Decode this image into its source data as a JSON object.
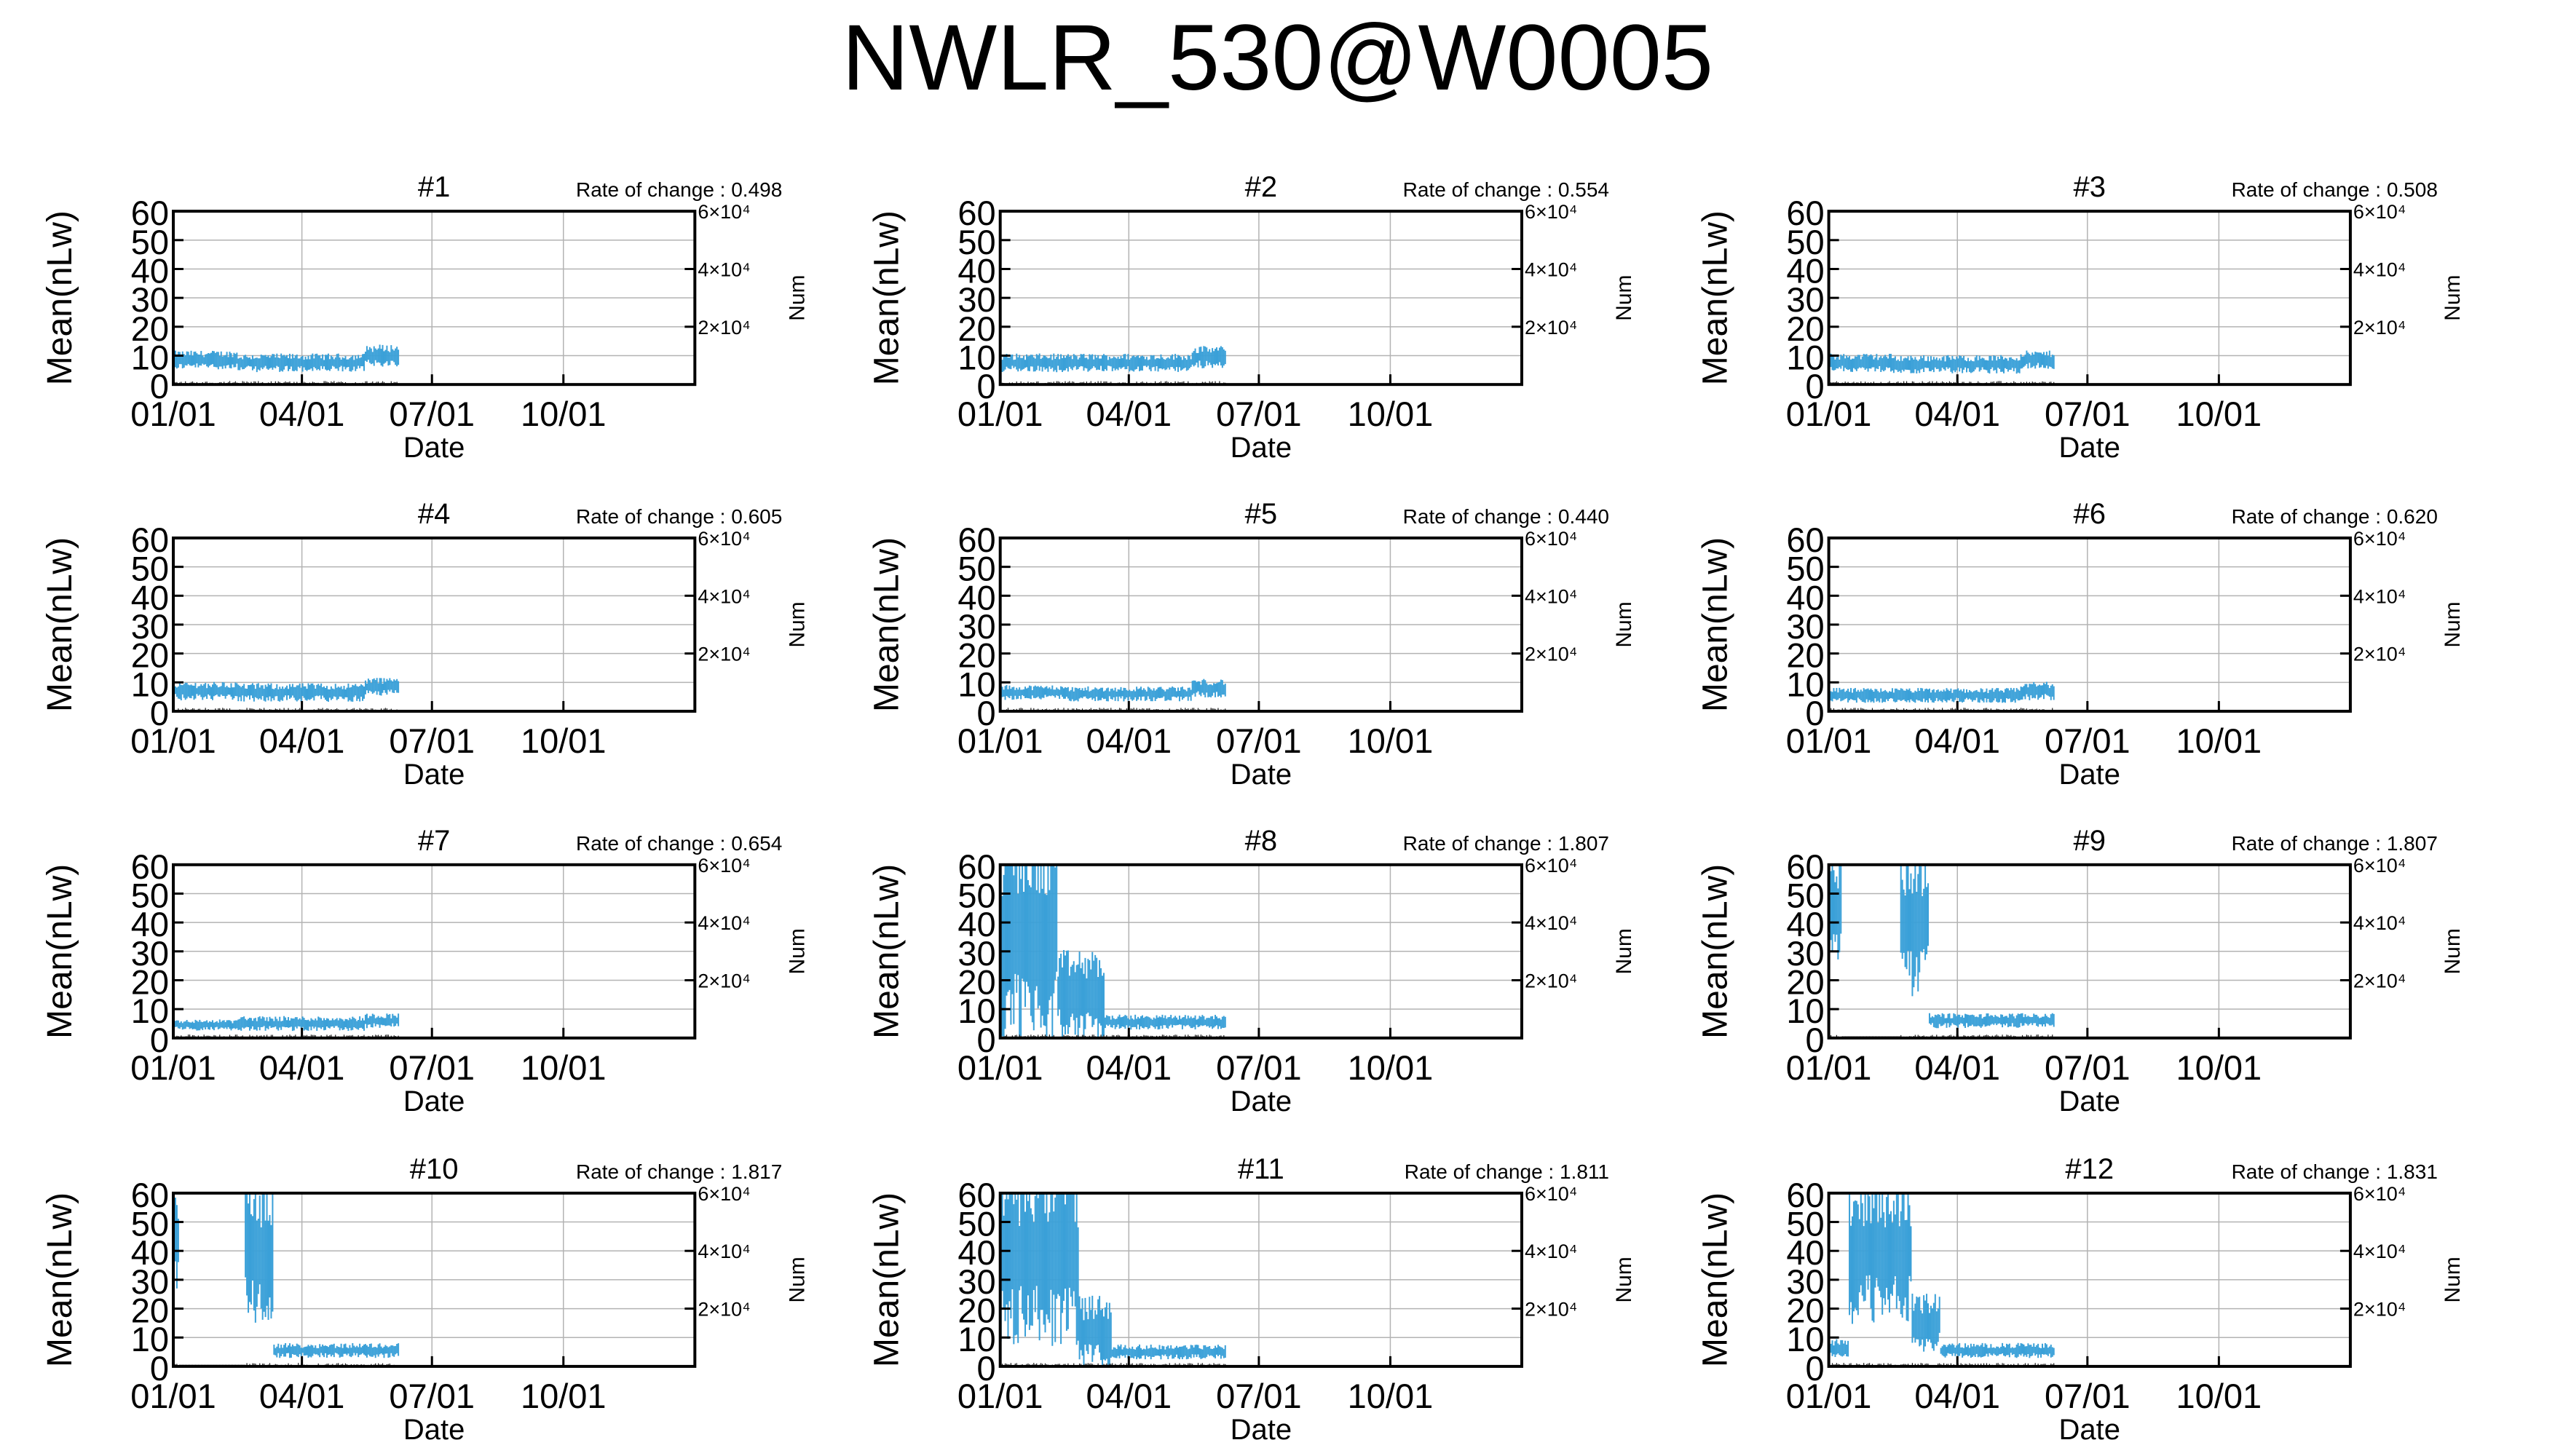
{
  "title": "NWLR_530@W0005",
  "colors": {
    "series": "#3aa0d8",
    "grid": "#b3b3b3",
    "axis": "#000000",
    "background": "#ffffff"
  },
  "chart_data": [
    {
      "type": "line",
      "panel": "#1",
      "rate_label": "Rate of change : 0.498",
      "xlabel": "Date",
      "ylabel": "Mean(nLw)",
      "y2label": "Num",
      "x_tick_labels": [
        "01/01",
        "04/01",
        "07/01",
        "10/01"
      ],
      "y_ticks": [
        0,
        10,
        20,
        30,
        40,
        50,
        60
      ],
      "y2_ticks": [
        "2×10⁴",
        "4×10⁴",
        "6×10⁴"
      ],
      "ylim": [
        0,
        60
      ],
      "y2lim": [
        0,
        60000
      ],
      "grid": true,
      "data_end_date": "06/08",
      "series": [
        {
          "segments": [
            {
              "from": "01/01",
              "to": "02/15",
              "mean": 8.5,
              "amp": 2.5
            },
            {
              "from": "02/15",
              "to": "05/15",
              "mean": 7.5,
              "amp": 2.5
            },
            {
              "from": "05/15",
              "to": "06/08",
              "mean": 10,
              "amp": 3
            }
          ]
        }
      ]
    },
    {
      "type": "line",
      "panel": "#2",
      "rate_label": "Rate of change : 0.554",
      "xlabel": "Date",
      "ylabel": "Mean(nLw)",
      "y2label": "Num",
      "x_tick_labels": [
        "01/01",
        "04/01",
        "07/01",
        "10/01"
      ],
      "y_ticks": [
        0,
        10,
        20,
        30,
        40,
        50,
        60
      ],
      "y2_ticks": [
        "2×10⁴",
        "4×10⁴",
        "6×10⁴"
      ],
      "ylim": [
        0,
        60
      ],
      "y2lim": [
        0,
        60000
      ],
      "grid": true,
      "data_end_date": "06/08",
      "series": [
        {
          "segments": [
            {
              "from": "01/01",
              "to": "02/15",
              "mean": 7.5,
              "amp": 2.5
            },
            {
              "from": "02/15",
              "to": "05/15",
              "mean": 7.5,
              "amp": 2.5
            },
            {
              "from": "05/15",
              "to": "06/08",
              "mean": 9.5,
              "amp": 3
            }
          ]
        }
      ]
    },
    {
      "type": "line",
      "panel": "#3",
      "rate_label": "Rate of change : 0.508",
      "xlabel": "Date",
      "ylabel": "Mean(nLw)",
      "y2label": "Num",
      "x_tick_labels": [
        "01/01",
        "04/01",
        "07/01",
        "10/01"
      ],
      "y_ticks": [
        0,
        10,
        20,
        30,
        40,
        50,
        60
      ],
      "y2_ticks": [
        "2×10⁴",
        "4×10⁴",
        "6×10⁴"
      ],
      "ylim": [
        0,
        60
      ],
      "y2lim": [
        0,
        60000
      ],
      "grid": true,
      "data_end_date": "06/08",
      "series": [
        {
          "segments": [
            {
              "from": "01/01",
              "to": "02/15",
              "mean": 7.5,
              "amp": 2.5
            },
            {
              "from": "02/15",
              "to": "05/15",
              "mean": 7,
              "amp": 2.5
            },
            {
              "from": "05/15",
              "to": "06/08",
              "mean": 8.5,
              "amp": 2.5
            }
          ]
        }
      ]
    },
    {
      "type": "line",
      "panel": "#4",
      "rate_label": "Rate of change : 0.605",
      "xlabel": "Date",
      "ylabel": "Mean(nLw)",
      "y2label": "Num",
      "x_tick_labels": [
        "01/01",
        "04/01",
        "07/01",
        "10/01"
      ],
      "y_ticks": [
        0,
        10,
        20,
        30,
        40,
        50,
        60
      ],
      "y2_ticks": [
        "2×10⁴",
        "4×10⁴",
        "6×10⁴"
      ],
      "ylim": [
        0,
        60
      ],
      "y2lim": [
        0,
        60000
      ],
      "grid": true,
      "data_end_date": "06/08",
      "series": [
        {
          "segments": [
            {
              "from": "01/01",
              "to": "02/15",
              "mean": 7,
              "amp": 2.5
            },
            {
              "from": "02/15",
              "to": "05/15",
              "mean": 6.5,
              "amp": 2.5
            },
            {
              "from": "05/15",
              "to": "06/08",
              "mean": 8.5,
              "amp": 2.5
            }
          ]
        }
      ]
    },
    {
      "type": "line",
      "panel": "#5",
      "rate_label": "Rate of change : 0.440",
      "xlabel": "Date",
      "ylabel": "Mean(nLw)",
      "y2label": "Num",
      "x_tick_labels": [
        "01/01",
        "04/01",
        "07/01",
        "10/01"
      ],
      "y_ticks": [
        0,
        10,
        20,
        30,
        40,
        50,
        60
      ],
      "y2_ticks": [
        "2×10⁴",
        "4×10⁴",
        "6×10⁴"
      ],
      "ylim": [
        0,
        60
      ],
      "y2lim": [
        0,
        60000
      ],
      "grid": true,
      "data_end_date": "06/08",
      "series": [
        {
          "segments": [
            {
              "from": "01/01",
              "to": "02/15",
              "mean": 6.5,
              "amp": 2
            },
            {
              "from": "02/15",
              "to": "05/15",
              "mean": 6,
              "amp": 2
            },
            {
              "from": "05/15",
              "to": "06/08",
              "mean": 8,
              "amp": 2.5
            }
          ]
        }
      ]
    },
    {
      "type": "line",
      "panel": "#6",
      "rate_label": "Rate of change : 0.620",
      "xlabel": "Date",
      "ylabel": "Mean(nLw)",
      "y2label": "Num",
      "x_tick_labels": [
        "01/01",
        "04/01",
        "07/01",
        "10/01"
      ],
      "y_ticks": [
        0,
        10,
        20,
        30,
        40,
        50,
        60
      ],
      "y2_ticks": [
        "2×10⁴",
        "4×10⁴",
        "6×10⁴"
      ],
      "ylim": [
        0,
        60
      ],
      "y2lim": [
        0,
        60000
      ],
      "grid": true,
      "data_end_date": "06/08",
      "series": [
        {
          "segments": [
            {
              "from": "01/01",
              "to": "02/15",
              "mean": 5.5,
              "amp": 2
            },
            {
              "from": "02/15",
              "to": "05/15",
              "mean": 5.5,
              "amp": 2
            },
            {
              "from": "05/15",
              "to": "06/08",
              "mean": 7,
              "amp": 2.5
            }
          ]
        }
      ]
    },
    {
      "type": "line",
      "panel": "#7",
      "rate_label": "Rate of change : 0.654",
      "xlabel": "Date",
      "ylabel": "Mean(nLw)",
      "y2label": "Num",
      "x_tick_labels": [
        "01/01",
        "04/01",
        "07/01",
        "10/01"
      ],
      "y_ticks": [
        0,
        10,
        20,
        30,
        40,
        50,
        60
      ],
      "y2_ticks": [
        "2×10⁴",
        "4×10⁴",
        "6×10⁴"
      ],
      "ylim": [
        0,
        60
      ],
      "y2lim": [
        0,
        60000
      ],
      "grid": true,
      "data_end_date": "06/08",
      "series": [
        {
          "segments": [
            {
              "from": "01/01",
              "to": "02/15",
              "mean": 4.5,
              "amp": 1.5
            },
            {
              "from": "02/15",
              "to": "05/15",
              "mean": 5,
              "amp": 2
            },
            {
              "from": "05/15",
              "to": "06/08",
              "mean": 6,
              "amp": 2
            }
          ]
        }
      ]
    },
    {
      "type": "line",
      "panel": "#8",
      "rate_label": "Rate of change : 1.807",
      "xlabel": "Date",
      "ylabel": "Mean(nLw)",
      "y2label": "Num",
      "x_tick_labels": [
        "01/01",
        "04/01",
        "07/01",
        "10/01"
      ],
      "y_ticks": [
        0,
        10,
        20,
        30,
        40,
        50,
        60
      ],
      "y2_ticks": [
        "2×10⁴",
        "4×10⁴",
        "6×10⁴"
      ],
      "ylim": [
        0,
        60
      ],
      "y2lim": [
        0,
        60000
      ],
      "grid": true,
      "data_end_date": "06/08",
      "series": [
        {
          "segments": [
            {
              "from": "01/01",
              "to": "02/10",
              "mean": 35,
              "amp": 30
            },
            {
              "from": "02/10",
              "to": "03/15",
              "mean": 15,
              "amp": 12
            },
            {
              "from": "03/15",
              "to": "06/08",
              "mean": 5.5,
              "amp": 2
            }
          ]
        }
      ]
    },
    {
      "type": "line",
      "panel": "#9",
      "rate_label": "Rate of change : 1.807",
      "xlabel": "Date",
      "ylabel": "Mean(nLw)",
      "y2label": "Num",
      "x_tick_labels": [
        "01/01",
        "04/01",
        "07/01",
        "10/01"
      ],
      "y_ticks": [
        0,
        10,
        20,
        30,
        40,
        50,
        60
      ],
      "y2_ticks": [
        "2×10⁴",
        "4×10⁴",
        "6×10⁴"
      ],
      "ylim": [
        0,
        60
      ],
      "y2lim": [
        0,
        60000
      ],
      "grid": true,
      "data_end_date": "06/08",
      "series": [
        {
          "segments": [
            {
              "from": "01/01",
              "to": "01/10",
              "mean": 45,
              "amp": 15
            },
            {
              "from": "01/10",
              "to": "02/20",
              "mean": 0,
              "amp": 0
            },
            {
              "from": "02/20",
              "to": "03/12",
              "mean": 40,
              "amp": 20
            },
            {
              "from": "03/12",
              "to": "06/08",
              "mean": 6,
              "amp": 2
            }
          ]
        }
      ]
    },
    {
      "type": "line",
      "panel": "#10",
      "rate_label": "Rate of change : 1.817",
      "xlabel": "Date",
      "ylabel": "Mean(nLw)",
      "y2label": "Num",
      "x_tick_labels": [
        "01/01",
        "04/01",
        "07/01",
        "10/01"
      ],
      "y_ticks": [
        0,
        10,
        20,
        30,
        40,
        50,
        60
      ],
      "y2_ticks": [
        "2×10⁴",
        "4×10⁴",
        "6×10⁴"
      ],
      "ylim": [
        0,
        60
      ],
      "y2lim": [
        0,
        60000
      ],
      "grid": true,
      "data_end_date": "06/08",
      "series": [
        {
          "segments": [
            {
              "from": "01/01",
              "to": "01/05",
              "mean": 45,
              "amp": 15
            },
            {
              "from": "01/05",
              "to": "02/20",
              "mean": 0,
              "amp": 0
            },
            {
              "from": "02/20",
              "to": "03/12",
              "mean": 40,
              "amp": 20
            },
            {
              "from": "03/12",
              "to": "06/08",
              "mean": 5.5,
              "amp": 2
            }
          ]
        }
      ]
    },
    {
      "type": "line",
      "panel": "#11",
      "rate_label": "Rate of change : 1.811",
      "xlabel": "Date",
      "ylabel": "Mean(nLw)",
      "y2label": "Num",
      "x_tick_labels": [
        "01/01",
        "04/01",
        "07/01",
        "10/01"
      ],
      "y_ticks": [
        0,
        10,
        20,
        30,
        40,
        50,
        60
      ],
      "y2_ticks": [
        "2×10⁴",
        "4×10⁴",
        "6×10⁴"
      ],
      "ylim": [
        0,
        60
      ],
      "y2lim": [
        0,
        60000
      ],
      "grid": true,
      "data_end_date": "06/08",
      "series": [
        {
          "segments": [
            {
              "from": "01/01",
              "to": "02/25",
              "mean": 38,
              "amp": 25
            },
            {
              "from": "02/25",
              "to": "03/20",
              "mean": 12,
              "amp": 10
            },
            {
              "from": "03/20",
              "to": "06/08",
              "mean": 5,
              "amp": 2
            }
          ]
        }
      ]
    },
    {
      "type": "line",
      "panel": "#12",
      "rate_label": "Rate of change : 1.831",
      "xlabel": "Date",
      "ylabel": "Mean(nLw)",
      "y2label": "Num",
      "x_tick_labels": [
        "01/01",
        "04/01",
        "07/01",
        "10/01"
      ],
      "y_ticks": [
        0,
        10,
        20,
        30,
        40,
        50,
        60
      ],
      "y2_ticks": [
        "2×10⁴",
        "4×10⁴",
        "6×10⁴"
      ],
      "ylim": [
        0,
        60
      ],
      "y2lim": [
        0,
        60000
      ],
      "grid": true,
      "data_end_date": "06/08",
      "series": [
        {
          "segments": [
            {
              "from": "01/01",
              "to": "01/15",
              "mean": 6,
              "amp": 3
            },
            {
              "from": "01/15",
              "to": "02/28",
              "mean": 40,
              "amp": 20
            },
            {
              "from": "02/28",
              "to": "03/20",
              "mean": 15,
              "amp": 8
            },
            {
              "from": "03/20",
              "to": "06/08",
              "mean": 5.5,
              "amp": 2
            }
          ]
        }
      ]
    }
  ]
}
